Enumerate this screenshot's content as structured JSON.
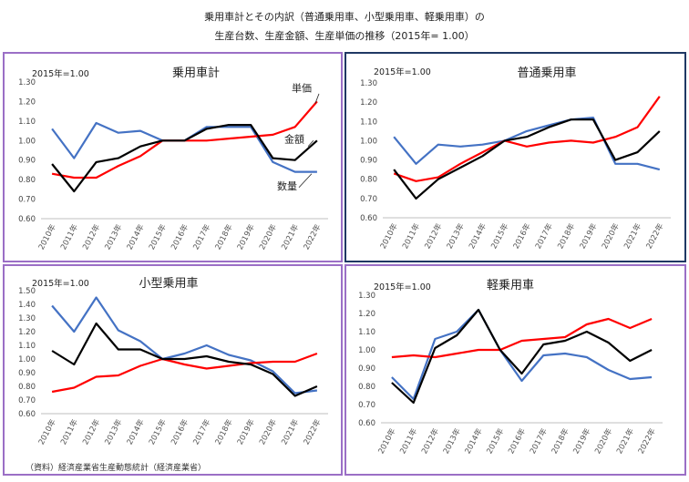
{
  "title_line1": "乗用車計とその内訳（普通乗用車、小型乗用車、軽乗用車）の",
  "title_line2": "生産台数、生産金額、生産単価の推移（2015年= 1.00）",
  "source": "（資料）経済産業省生産動態統計（経済産業省）",
  "colors": {
    "数量": "#4472C4",
    "単価": "#FF0000",
    "金額": "#000000"
  },
  "chart_data": [
    {
      "type": "line",
      "title": "乗用車計",
      "baseline_label": "2015年=1.00",
      "border_color": "#9B6FC6",
      "ylim": [
        0.6,
        1.3
      ],
      "yticks": [
        "0.60",
        "0.70",
        "0.80",
        "0.90",
        "1.00",
        "1.10",
        "1.20",
        "1.30"
      ],
      "categories": [
        "2010年",
        "2011年",
        "2012年",
        "2013年",
        "2014年",
        "2015年",
        "2016年",
        "2017年",
        "2018年",
        "2019年",
        "2020年",
        "2021年",
        "2022年"
      ],
      "series": [
        {
          "name": "数量",
          "color": "#4472C4",
          "values": [
            1.06,
            0.91,
            1.09,
            1.04,
            1.05,
            1.0,
            1.0,
            1.07,
            1.07,
            1.07,
            0.89,
            0.84,
            0.84
          ]
        },
        {
          "name": "単価",
          "color": "#FF0000",
          "values": [
            0.83,
            0.81,
            0.81,
            0.87,
            0.92,
            1.0,
            1.0,
            1.0,
            1.01,
            1.02,
            1.03,
            1.07,
            1.2
          ]
        },
        {
          "name": "金額",
          "color": "#000000",
          "values": [
            0.88,
            0.74,
            0.89,
            0.91,
            0.97,
            1.0,
            1.0,
            1.06,
            1.08,
            1.08,
            0.91,
            0.9,
            1.0
          ]
        }
      ],
      "annotations": [
        "単価",
        "金額",
        "数量"
      ]
    },
    {
      "type": "line",
      "title": "普通乗用車",
      "baseline_label": "2015年=1.00",
      "border_color": "#1F3864",
      "ylim": [
        0.6,
        1.3
      ],
      "yticks": [
        "0.60",
        "0.70",
        "0.80",
        "0.90",
        "1.00",
        "1.10",
        "1.20",
        "1.30"
      ],
      "categories": [
        "2010年",
        "2011年",
        "2012年",
        "2013年",
        "2014年",
        "2015年",
        "2016年",
        "2017年",
        "2018年",
        "2019年",
        "2020年",
        "2021年",
        "2022年"
      ],
      "series": [
        {
          "name": "数量",
          "color": "#4472C4",
          "values": [
            1.02,
            0.88,
            0.98,
            0.97,
            0.98,
            1.0,
            1.05,
            1.08,
            1.11,
            1.12,
            0.88,
            0.88,
            0.85
          ]
        },
        {
          "name": "単価",
          "color": "#FF0000",
          "values": [
            0.83,
            0.79,
            0.81,
            0.88,
            0.94,
            1.0,
            0.97,
            0.99,
            1.0,
            0.99,
            1.02,
            1.07,
            1.23
          ]
        },
        {
          "name": "金額",
          "color": "#000000",
          "values": [
            0.85,
            0.7,
            0.8,
            0.86,
            0.92,
            1.0,
            1.02,
            1.07,
            1.11,
            1.11,
            0.9,
            0.94,
            1.05
          ]
        }
      ]
    },
    {
      "type": "line",
      "title": "小型乗用車",
      "baseline_label": "2015年=1.00",
      "border_color": "#9B6FC6",
      "ylim": [
        0.6,
        1.5
      ],
      "yticks": [
        "0.60",
        "0.70",
        "0.80",
        "0.90",
        "1.00",
        "1.10",
        "1.20",
        "1.30",
        "1.40",
        "1.50"
      ],
      "categories": [
        "2010年",
        "2011年",
        "2012年",
        "2013年",
        "2014年",
        "2015年",
        "2016年",
        "2017年",
        "2018年",
        "2019年",
        "2020年",
        "2021年",
        "2022年"
      ],
      "series": [
        {
          "name": "数量",
          "color": "#4472C4",
          "values": [
            1.39,
            1.2,
            1.45,
            1.21,
            1.13,
            1.0,
            1.04,
            1.1,
            1.03,
            0.99,
            0.91,
            0.75,
            0.77
          ]
        },
        {
          "name": "単価",
          "color": "#FF0000",
          "values": [
            0.76,
            0.79,
            0.87,
            0.88,
            0.95,
            1.0,
            0.96,
            0.93,
            0.95,
            0.97,
            0.98,
            0.98,
            1.04
          ]
        },
        {
          "name": "金額",
          "color": "#000000",
          "values": [
            1.06,
            0.96,
            1.26,
            1.07,
            1.07,
            1.0,
            1.0,
            1.02,
            0.98,
            0.96,
            0.89,
            0.73,
            0.8
          ]
        }
      ]
    },
    {
      "type": "line",
      "title": "軽乗用車",
      "baseline_label": "2015年=1.00",
      "border_color": "#9B6FC6",
      "ylim": [
        0.6,
        1.3
      ],
      "yticks": [
        "0.60",
        "0.70",
        "0.80",
        "0.90",
        "1.00",
        "1.10",
        "1.20",
        "1.30"
      ],
      "categories": [
        "2010年",
        "2011年",
        "2012年",
        "2013年",
        "2014年",
        "2015年",
        "2016年",
        "2017年",
        "2018年",
        "2019年",
        "2020年",
        "2021年",
        "2022年"
      ],
      "series": [
        {
          "name": "数量",
          "color": "#4472C4",
          "values": [
            0.85,
            0.73,
            1.06,
            1.1,
            1.22,
            1.0,
            0.83,
            0.97,
            0.98,
            0.96,
            0.89,
            0.84,
            0.85
          ]
        },
        {
          "name": "単価",
          "color": "#FF0000",
          "values": [
            0.96,
            0.97,
            0.96,
            0.98,
            1.0,
            1.0,
            1.05,
            1.06,
            1.07,
            1.14,
            1.17,
            1.12,
            1.17
          ]
        },
        {
          "name": "金額",
          "color": "#000000",
          "values": [
            0.82,
            0.71,
            1.01,
            1.08,
            1.22,
            1.0,
            0.87,
            1.03,
            1.05,
            1.1,
            1.04,
            0.94,
            1.0
          ]
        }
      ]
    }
  ]
}
